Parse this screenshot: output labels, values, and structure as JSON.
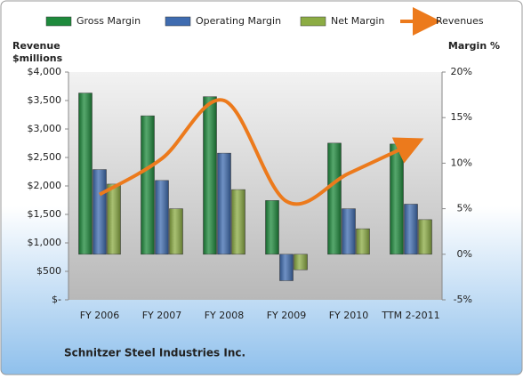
{
  "chart_data": {
    "type": "bar",
    "ylabel": [
      "Revenue",
      "$millions"
    ],
    "y2label": "Margin %",
    "footnote": "Schnitzer Steel Industries Inc.",
    "categories": [
      "FY 2006",
      "FY 2007",
      "FY 2008",
      "FY 2009",
      "FY 2010",
      "TTM 2-2011"
    ],
    "series": [
      {
        "name": "Gross Margin",
        "type": "bar",
        "axis": "y2",
        "color": "#1e8a3c",
        "values": [
          17.7,
          15.2,
          17.3,
          5.9,
          12.2,
          12.1
        ]
      },
      {
        "name": "Operating Margin",
        "type": "bar",
        "axis": "y2",
        "color": "#3f6cb0",
        "values": [
          9.3,
          8.1,
          11.1,
          -2.9,
          5.0,
          5.5
        ]
      },
      {
        "name": "Net Margin",
        "type": "bar",
        "axis": "y2",
        "color": "#8cac44",
        "values": [
          7.7,
          5.0,
          7.1,
          -1.7,
          2.8,
          3.8
        ]
      },
      {
        "name": "Revenues",
        "type": "line",
        "axis": "y",
        "color": "#ec7a1c",
        "values": [
          1850,
          2480,
          3500,
          1730,
          2220,
          2730
        ]
      }
    ],
    "ylim": [
      0,
      4000
    ],
    "yticks": [
      {
        "value": 0,
        "label": "$-"
      },
      {
        "value": 500,
        "label": "$500"
      },
      {
        "value": 1000,
        "label": "$1,000"
      },
      {
        "value": 1500,
        "label": "$1,500"
      },
      {
        "value": 2000,
        "label": "$2,000"
      },
      {
        "value": 2500,
        "label": "$2,500"
      },
      {
        "value": 3000,
        "label": "$3,000"
      },
      {
        "value": 3500,
        "label": "$3,500"
      },
      {
        "value": 4000,
        "label": "$4,000"
      }
    ],
    "y2lim": [
      -5,
      20
    ],
    "y2ticks": [
      {
        "value": -5,
        "label": "-5%"
      },
      {
        "value": 0,
        "label": "0%"
      },
      {
        "value": 5,
        "label": "5%"
      },
      {
        "value": 10,
        "label": "10%"
      },
      {
        "value": 15,
        "label": "15%"
      },
      {
        "value": 20,
        "label": "20%"
      }
    ]
  }
}
